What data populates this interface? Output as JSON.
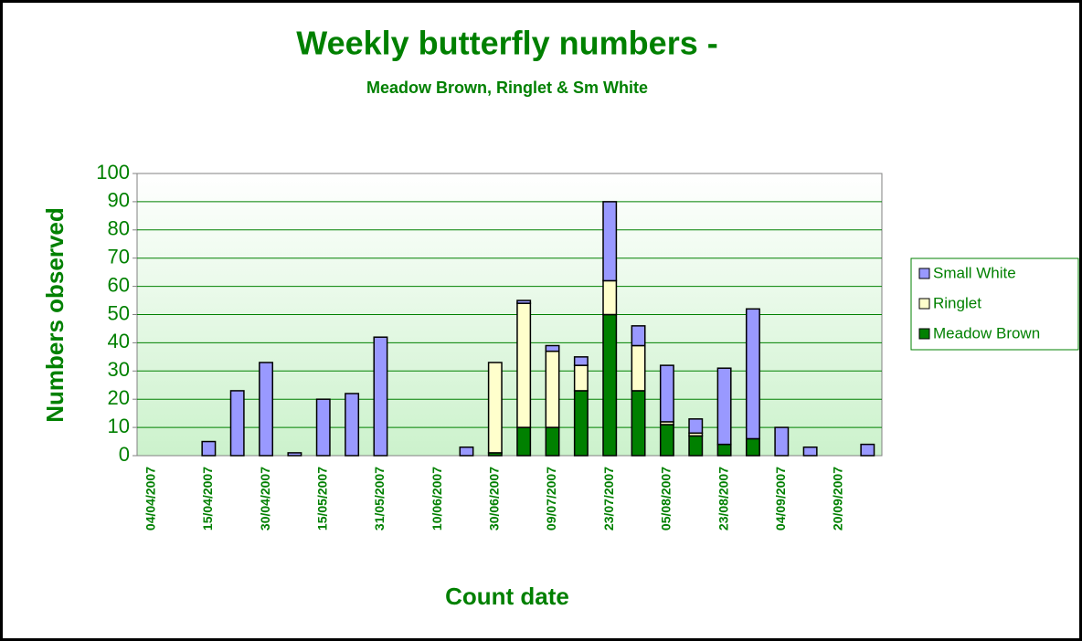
{
  "chart_data": {
    "type": "bar",
    "stacked": true,
    "title": "Weekly butterfly numbers -",
    "subtitle": "Meadow Brown, Ringlet & Sm White",
    "x_label": "Count date",
    "y_label": "Numbers observed",
    "categories": [
      "04/04/2007",
      null,
      "15/04/2007",
      null,
      "30/04/2007",
      null,
      "15/05/2007",
      null,
      "31/05/2007",
      null,
      "10/06/2007",
      null,
      "30/06/2007",
      null,
      "09/07/2007",
      null,
      "23/07/2007",
      null,
      "05/08/2007",
      null,
      "23/08/2007",
      null,
      "04/09/2007",
      null,
      "20/09/2007",
      null
    ],
    "series": [
      {
        "name": "Meadow Brown",
        "color": "#008000",
        "values": [
          0,
          0,
          0,
          0,
          0,
          0,
          0,
          0,
          0,
          0,
          0,
          0,
          1,
          10,
          10,
          23,
          50,
          23,
          11,
          7,
          4,
          6,
          0,
          0,
          0,
          0
        ]
      },
      {
        "name": "Ringlet",
        "color": "#ffffcc",
        "values": [
          0,
          0,
          0,
          0,
          0,
          0,
          0,
          0,
          0,
          0,
          0,
          0,
          32,
          44,
          27,
          9,
          12,
          16,
          1,
          1,
          0,
          0,
          0,
          0,
          0,
          0
        ]
      },
      {
        "name": "Small White",
        "color": "#9999ff",
        "values": [
          0,
          0,
          5,
          23,
          33,
          1,
          20,
          22,
          42,
          0,
          0,
          3,
          0,
          1,
          2,
          3,
          28,
          7,
          20,
          5,
          27,
          46,
          10,
          3,
          0,
          4
        ]
      }
    ],
    "ylim": [
      0,
      100
    ],
    "yticks": [
      0,
      10,
      20,
      30,
      40,
      50,
      60,
      70,
      80,
      90,
      100
    ],
    "grid": true,
    "legend": "right"
  }
}
